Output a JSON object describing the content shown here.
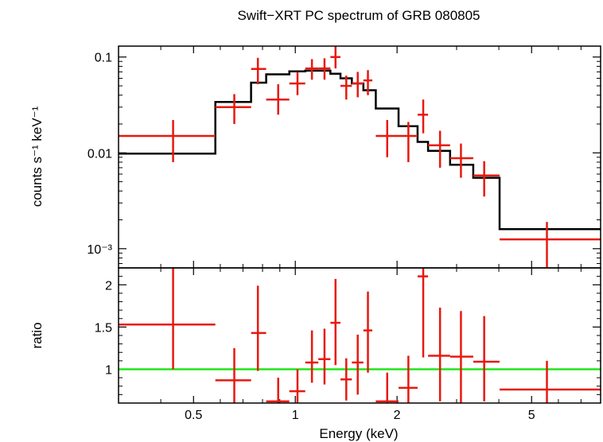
{
  "chart_data": [
    {
      "type": "line",
      "panel": "spectrum",
      "title": "Swift−XRT PC spectrum of GRB 080805",
      "ylabel": "counts s⁻¹ keV⁻¹",
      "xscale": "log",
      "yscale": "log",
      "xlim": [
        0.3,
        8.0
      ],
      "ylim": [
        0.00063,
        0.13
      ],
      "yticks": [
        {
          "value": 0.1,
          "label": "0.1"
        },
        {
          "value": 0.01,
          "label": "0.01"
        },
        {
          "value": 0.001,
          "label": "10⁻³"
        }
      ],
      "data_points": [
        {
          "x": 0.435,
          "xlo": 0.3,
          "xhi": 0.58,
          "y": 0.015,
          "ylo": 0.008,
          "yhi": 0.022
        },
        {
          "x": 0.66,
          "xlo": 0.58,
          "xhi": 0.74,
          "y": 0.03,
          "ylo": 0.02,
          "yhi": 0.041
        },
        {
          "x": 0.775,
          "xlo": 0.74,
          "xhi": 0.82,
          "y": 0.075,
          "ylo": 0.052,
          "yhi": 0.098
        },
        {
          "x": 0.89,
          "xlo": 0.82,
          "xhi": 0.96,
          "y": 0.036,
          "ylo": 0.025,
          "yhi": 0.052
        },
        {
          "x": 1.015,
          "xlo": 0.96,
          "xhi": 1.07,
          "y": 0.053,
          "ylo": 0.04,
          "yhi": 0.07
        },
        {
          "x": 1.12,
          "xlo": 1.07,
          "xhi": 1.17,
          "y": 0.076,
          "ylo": 0.058,
          "yhi": 0.095
        },
        {
          "x": 1.22,
          "xlo": 1.17,
          "xhi": 1.27,
          "y": 0.076,
          "ylo": 0.058,
          "yhi": 0.097
        },
        {
          "x": 1.315,
          "xlo": 1.27,
          "xhi": 1.36,
          "y": 0.1,
          "ylo": 0.076,
          "yhi": 0.13
        },
        {
          "x": 1.415,
          "xlo": 1.36,
          "xhi": 1.47,
          "y": 0.05,
          "ylo": 0.036,
          "yhi": 0.064
        },
        {
          "x": 1.53,
          "xlo": 1.47,
          "xhi": 1.59,
          "y": 0.053,
          "ylo": 0.038,
          "yhi": 0.07
        },
        {
          "x": 1.64,
          "xlo": 1.59,
          "xhi": 1.69,
          "y": 0.057,
          "ylo": 0.04,
          "yhi": 0.073
        },
        {
          "x": 1.87,
          "xlo": 1.73,
          "xhi": 2.02,
          "y": 0.015,
          "ylo": 0.009,
          "yhi": 0.022
        },
        {
          "x": 2.16,
          "xlo": 2.02,
          "xhi": 2.3,
          "y": 0.015,
          "ylo": 0.008,
          "yhi": 0.021
        },
        {
          "x": 2.39,
          "xlo": 2.3,
          "xhi": 2.47,
          "y": 0.025,
          "ylo": 0.016,
          "yhi": 0.036
        },
        {
          "x": 2.68,
          "xlo": 2.47,
          "xhi": 2.87,
          "y": 0.012,
          "ylo": 0.007,
          "yhi": 0.017
        },
        {
          "x": 3.09,
          "xlo": 2.87,
          "xhi": 3.36,
          "y": 0.0088,
          "ylo": 0.0055,
          "yhi": 0.0125
        },
        {
          "x": 3.62,
          "xlo": 3.36,
          "xhi": 4.02,
          "y": 0.0058,
          "ylo": 0.0035,
          "yhi": 0.0082
        },
        {
          "x": 5.55,
          "xlo": 4.02,
          "xhi": 8.0,
          "y": 0.00125,
          "ylo": 0.00063,
          "yhi": 0.0019
        }
      ],
      "model_steps": [
        {
          "x0": 0.3,
          "x1": 0.58,
          "y": 0.0098
        },
        {
          "x0": 0.58,
          "x1": 0.74,
          "y": 0.034
        },
        {
          "x0": 0.74,
          "x1": 0.82,
          "y": 0.054
        },
        {
          "x0": 0.82,
          "x1": 0.96,
          "y": 0.066
        },
        {
          "x0": 0.96,
          "x1": 1.07,
          "y": 0.071
        },
        {
          "x0": 1.07,
          "x1": 1.27,
          "y": 0.072
        },
        {
          "x0": 1.27,
          "x1": 1.36,
          "y": 0.067
        },
        {
          "x0": 1.36,
          "x1": 1.47,
          "y": 0.06
        },
        {
          "x0": 1.47,
          "x1": 1.59,
          "y": 0.053
        },
        {
          "x0": 1.59,
          "x1": 1.73,
          "y": 0.045
        },
        {
          "x0": 1.73,
          "x1": 2.02,
          "y": 0.029
        },
        {
          "x0": 2.02,
          "x1": 2.3,
          "y": 0.019
        },
        {
          "x0": 2.3,
          "x1": 2.47,
          "y": 0.013
        },
        {
          "x0": 2.47,
          "x1": 2.87,
          "y": 0.0105
        },
        {
          "x0": 2.87,
          "x1": 3.36,
          "y": 0.0075
        },
        {
          "x0": 3.36,
          "x1": 4.02,
          "y": 0.0055
        },
        {
          "x0": 4.02,
          "x1": 8.0,
          "y": 0.0016
        }
      ],
      "colors": {
        "data": "#e8190f",
        "model": "#000000"
      },
      "grid": false
    },
    {
      "type": "line",
      "panel": "ratio",
      "xlabel": "Energy (keV)",
      "ylabel": "ratio",
      "xscale": "log",
      "yscale": "linear",
      "xlim": [
        0.3,
        8.0
      ],
      "ylim": [
        0.6,
        2.2
      ],
      "yticks": [
        {
          "value": 1,
          "label": "1"
        },
        {
          "value": 1.5,
          "label": "1.5"
        },
        {
          "value": 2,
          "label": "2"
        }
      ],
      "xticks": [
        {
          "value": 0.5,
          "label": "0.5"
        },
        {
          "value": 1,
          "label": "1"
        },
        {
          "value": 2,
          "label": "2"
        },
        {
          "value": 5,
          "label": "5"
        }
      ],
      "reference_line": 1,
      "data_points": [
        {
          "x": 0.435,
          "xlo": 0.3,
          "xhi": 0.58,
          "y": 1.53,
          "ylo": 1.0,
          "yhi": 2.2
        },
        {
          "x": 0.66,
          "xlo": 0.58,
          "xhi": 0.74,
          "y": 0.87,
          "ylo": 0.6,
          "yhi": 1.25
        },
        {
          "x": 0.775,
          "xlo": 0.74,
          "xhi": 0.82,
          "y": 1.43,
          "ylo": 0.98,
          "yhi": 1.99
        },
        {
          "x": 0.89,
          "xlo": 0.82,
          "xhi": 0.96,
          "y": 0.62,
          "ylo": 0.6,
          "yhi": 0.9
        },
        {
          "x": 1.015,
          "xlo": 0.96,
          "xhi": 1.07,
          "y": 0.74,
          "ylo": 0.6,
          "yhi": 1.0
        },
        {
          "x": 1.12,
          "xlo": 1.07,
          "xhi": 1.17,
          "y": 1.08,
          "ylo": 0.84,
          "yhi": 1.46
        },
        {
          "x": 1.22,
          "xlo": 1.17,
          "xhi": 1.27,
          "y": 1.12,
          "ylo": 0.82,
          "yhi": 1.48
        },
        {
          "x": 1.315,
          "xlo": 1.27,
          "xhi": 1.36,
          "y": 1.55,
          "ylo": 1.05,
          "yhi": 2.07
        },
        {
          "x": 1.415,
          "xlo": 1.36,
          "xhi": 1.47,
          "y": 0.88,
          "ylo": 0.63,
          "yhi": 1.13
        },
        {
          "x": 1.53,
          "xlo": 1.47,
          "xhi": 1.59,
          "y": 1.08,
          "ylo": 0.7,
          "yhi": 1.41
        },
        {
          "x": 1.64,
          "xlo": 1.59,
          "xhi": 1.69,
          "y": 1.46,
          "ylo": 0.96,
          "yhi": 1.92
        },
        {
          "x": 1.87,
          "xlo": 1.73,
          "xhi": 2.02,
          "y": 0.62,
          "ylo": 0.6,
          "yhi": 0.96
        },
        {
          "x": 2.16,
          "xlo": 2.02,
          "xhi": 2.3,
          "y": 0.78,
          "ylo": 0.6,
          "yhi": 1.16
        },
        {
          "x": 2.39,
          "xlo": 2.3,
          "xhi": 2.47,
          "y": 2.1,
          "ylo": 1.14,
          "yhi": 2.2
        },
        {
          "x": 2.68,
          "xlo": 2.47,
          "xhi": 2.87,
          "y": 1.16,
          "ylo": 0.62,
          "yhi": 1.73
        },
        {
          "x": 3.09,
          "xlo": 2.87,
          "xhi": 3.36,
          "y": 1.15,
          "ylo": 0.6,
          "yhi": 1.69
        },
        {
          "x": 3.62,
          "xlo": 3.36,
          "xhi": 4.02,
          "y": 1.09,
          "ylo": 0.62,
          "yhi": 1.63
        },
        {
          "x": 5.55,
          "xlo": 4.02,
          "xhi": 8.0,
          "y": 0.76,
          "ylo": 0.6,
          "yhi": 1.1
        }
      ],
      "colors": {
        "data": "#e8190f",
        "reference": "#22e61a"
      },
      "grid": false
    }
  ]
}
